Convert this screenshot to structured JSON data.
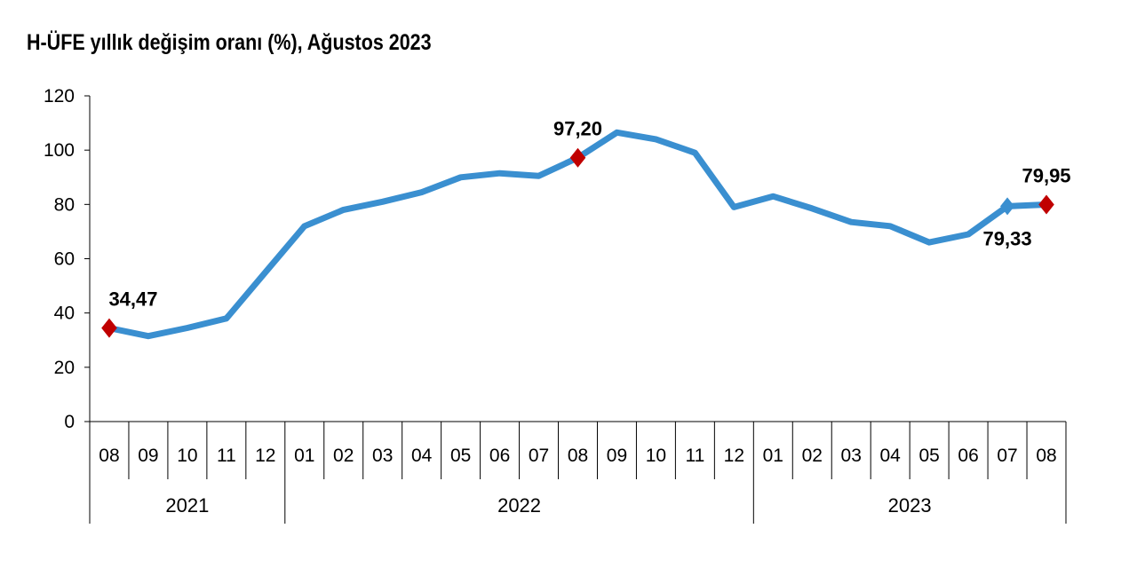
{
  "title": "H-ÜFE yıllık değişim oranı (%), Ağustos 2023",
  "colors": {
    "line": "#3a8fd0",
    "marker_highlight": "#c00000",
    "marker_series": "#3a8fd0",
    "axis": "#000000"
  },
  "chart_data": {
    "type": "line",
    "title": "H-ÜFE yıllık değişim oranı (%), Ağustos 2023",
    "xlabel": "",
    "ylabel": "",
    "ylim": [
      0,
      120
    ],
    "yticks": [
      "0",
      "20",
      "40",
      "60",
      "80",
      "100",
      "120"
    ],
    "categories": [
      "08",
      "09",
      "10",
      "11",
      "12",
      "01",
      "02",
      "03",
      "04",
      "05",
      "06",
      "07",
      "08",
      "09",
      "10",
      "11",
      "12",
      "01",
      "02",
      "03",
      "04",
      "05",
      "06",
      "07",
      "08"
    ],
    "years": [
      {
        "label": "2021",
        "count": 5
      },
      {
        "label": "2022",
        "count": 12
      },
      {
        "label": "2023",
        "count": 8
      }
    ],
    "series": [
      {
        "values": [
          34.47,
          31.5,
          34.5,
          38.0,
          55.0,
          72.0,
          78.0,
          81.0,
          84.5,
          90.0,
          91.5,
          90.5,
          97.2,
          106.5,
          104.0,
          99.0,
          79.0,
          83.0,
          78.5,
          73.5,
          72.0,
          66.0,
          69.0,
          79.33,
          79.95
        ]
      }
    ],
    "annotations": [
      {
        "index": 0,
        "label": "34,47",
        "marker": "highlight",
        "position": "above"
      },
      {
        "index": 12,
        "label": "97,20",
        "marker": "highlight",
        "position": "above"
      },
      {
        "index": 23,
        "label": "79,33",
        "marker": "series",
        "position": "below"
      },
      {
        "index": 24,
        "label": "79,95",
        "marker": "highlight",
        "position": "above"
      }
    ],
    "grid": false,
    "legend": "none"
  }
}
